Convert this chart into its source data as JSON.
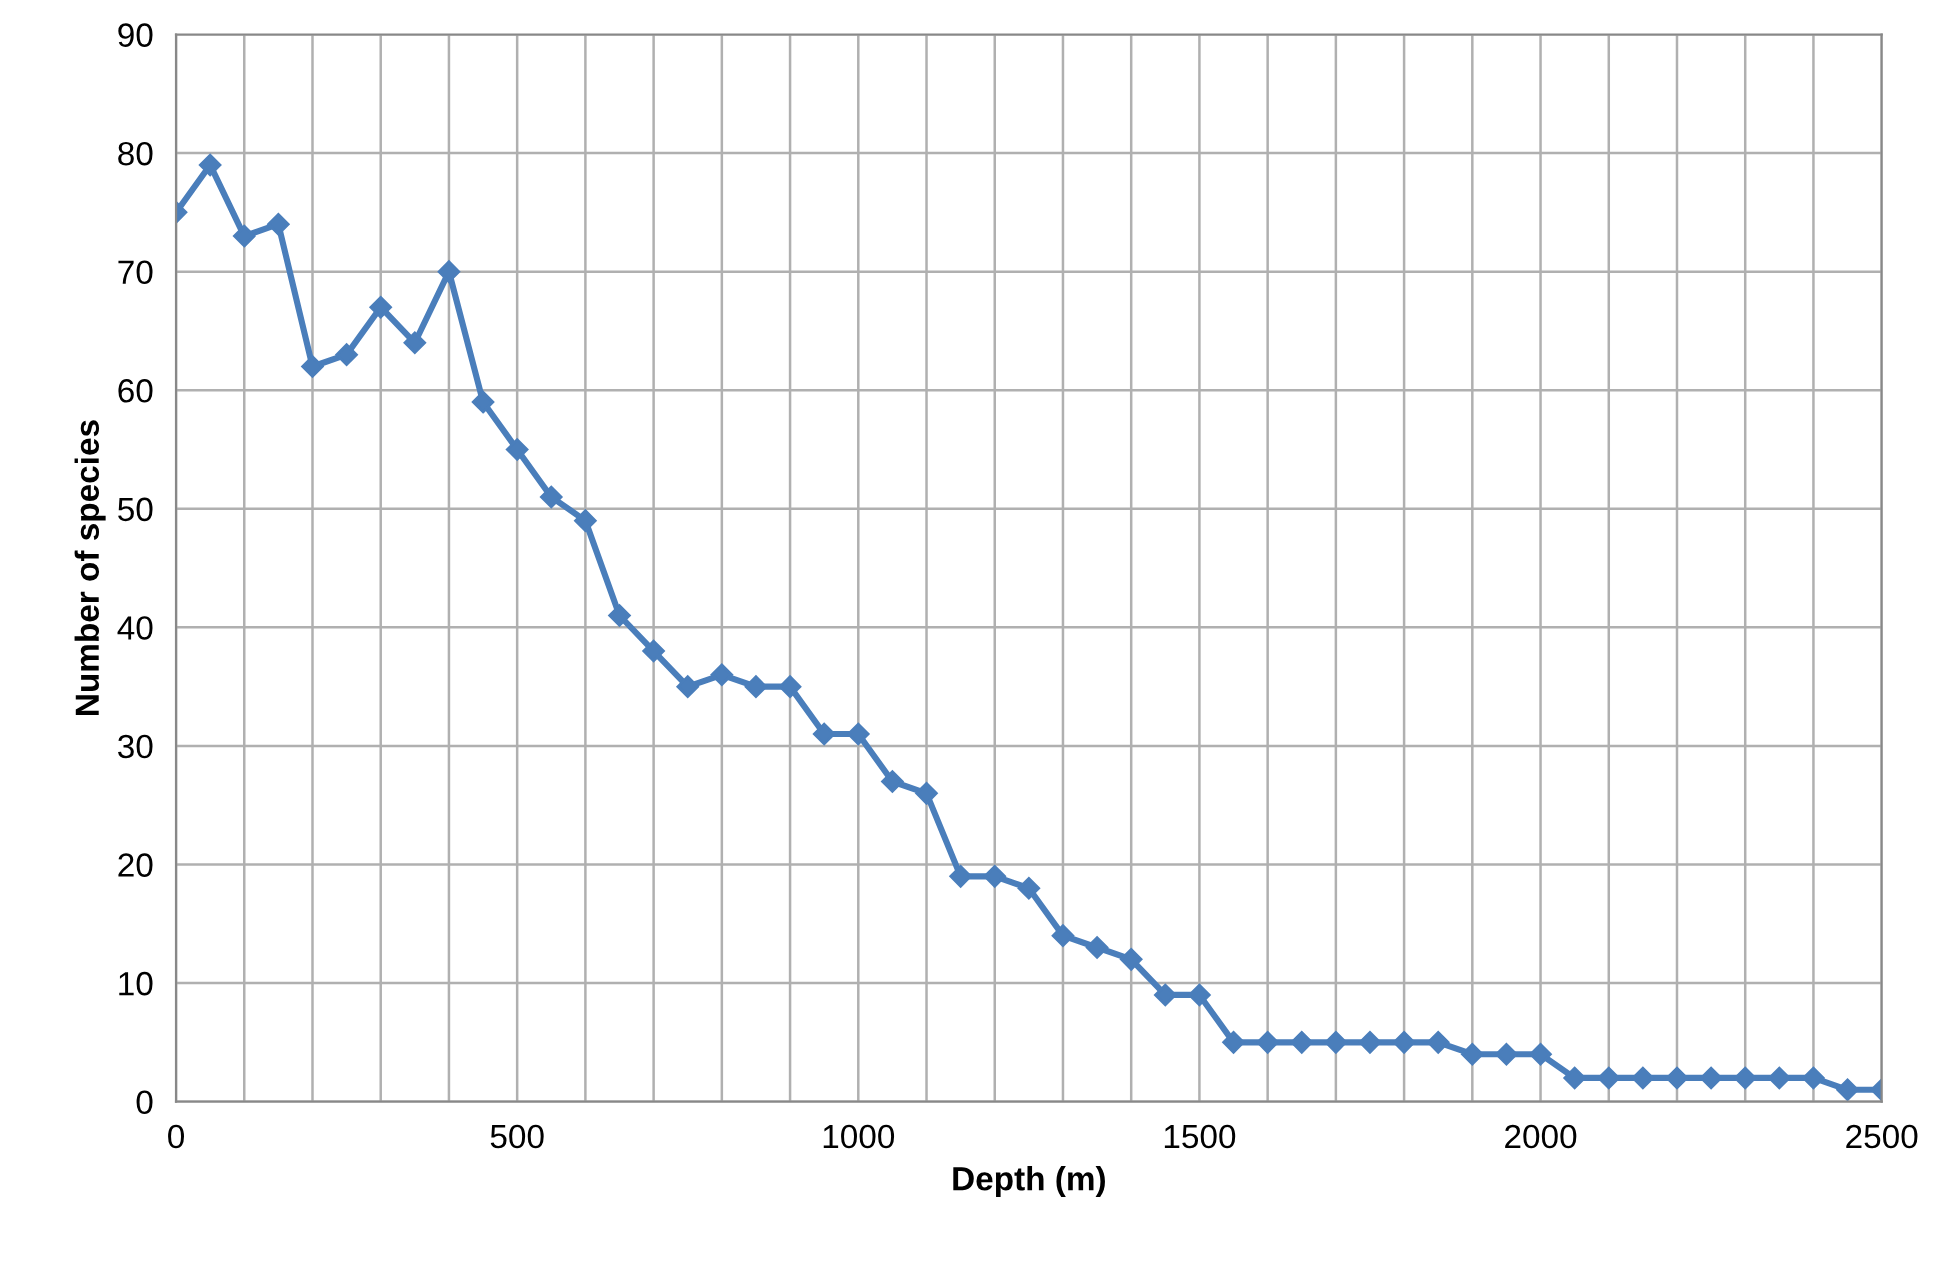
{
  "chart_data": {
    "type": "line",
    "xlabel": "Depth (m)",
    "ylabel": "Number of species",
    "x": [
      0,
      50,
      100,
      150,
      200,
      250,
      300,
      350,
      400,
      450,
      500,
      550,
      600,
      650,
      700,
      750,
      800,
      850,
      900,
      950,
      1000,
      1050,
      1100,
      1150,
      1200,
      1250,
      1300,
      1350,
      1400,
      1450,
      1500,
      1550,
      1600,
      1650,
      1700,
      1750,
      1800,
      1850,
      1900,
      1950,
      2000,
      2050,
      2100,
      2150,
      2200,
      2250,
      2300,
      2350,
      2400,
      2450,
      2500
    ],
    "series": [
      {
        "color": "#4a7ebb",
        "values": [
          75,
          79,
          73,
          74,
          62,
          63,
          67,
          64,
          70,
          59,
          55,
          51,
          49,
          41,
          38,
          35,
          36,
          35,
          35,
          31,
          31,
          27,
          26,
          19,
          19,
          18,
          14,
          13,
          12,
          9,
          9,
          5,
          5,
          5,
          5,
          5,
          5,
          5,
          4,
          4,
          4,
          2,
          2,
          2,
          2,
          2,
          2,
          2,
          2,
          1,
          1
        ]
      }
    ],
    "xlim": [
      0,
      2500
    ],
    "xticks": [
      0,
      {
        "value": 100,
        "label": null
      },
      {
        "value": 200,
        "label": null
      },
      {
        "value": 300,
        "label": null
      },
      {
        "value": 400,
        "label": null
      },
      500,
      {
        "value": 600,
        "label": null
      },
      {
        "value": 700,
        "label": null
      },
      {
        "value": 800,
        "label": null
      },
      {
        "value": 900,
        "label": null
      },
      1000,
      {
        "value": 1100,
        "label": null
      },
      {
        "value": 1200,
        "label": null
      },
      {
        "value": 1300,
        "label": null
      },
      {
        "value": 1400,
        "label": null
      },
      1500,
      {
        "value": 1600,
        "label": null
      },
      {
        "value": 1700,
        "label": null
      },
      {
        "value": 1800,
        "label": null
      },
      {
        "value": 1900,
        "label": null
      },
      2000,
      {
        "value": 2100,
        "label": null
      },
      {
        "value": 2200,
        "label": null
      },
      {
        "value": 2300,
        "label": null
      },
      {
        "value": 2400,
        "label": null
      },
      2500
    ],
    "ylim": [
      0,
      90
    ],
    "yticks": [
      0,
      10,
      20,
      30,
      40,
      50,
      60,
      70,
      80,
      90
    ],
    "grid": true,
    "marker": "diamond",
    "line_style": "solid"
  }
}
